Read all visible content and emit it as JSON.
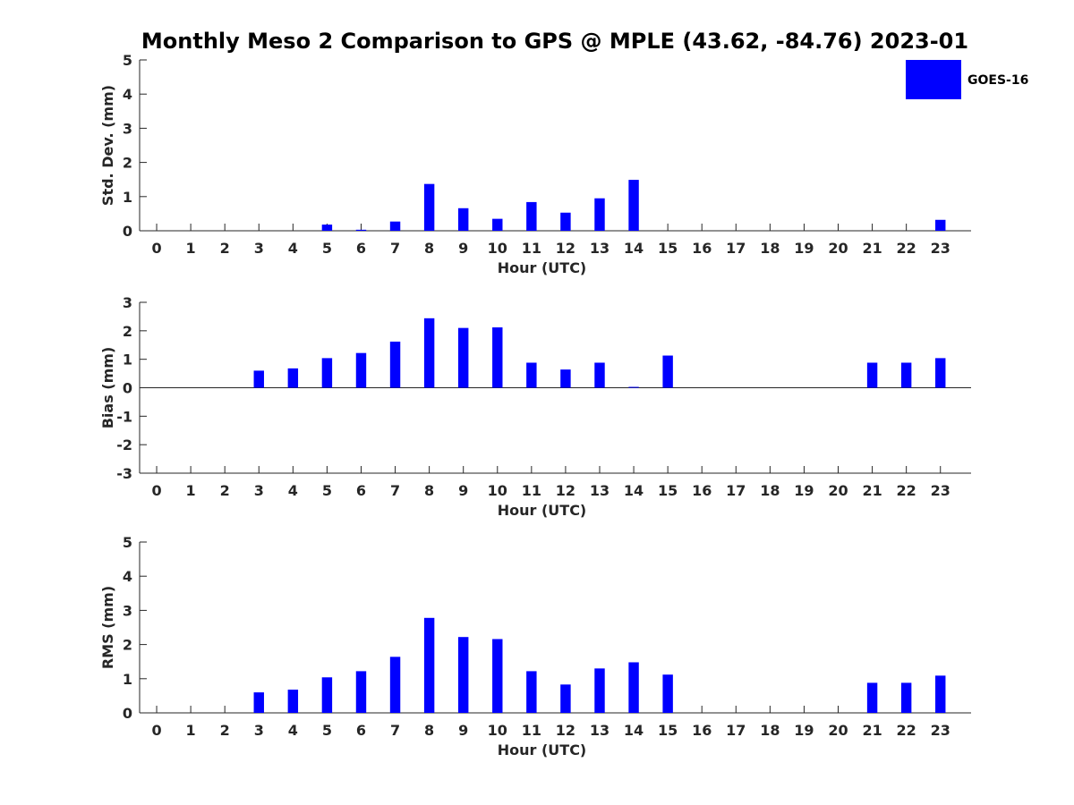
{
  "chart_data": {
    "title": "Monthly Meso 2 Comparison to GPS @ MPLE (43.62, -84.76) 2023-01",
    "colors": {
      "series": "#0000ff",
      "axis": "#262626"
    },
    "legend": {
      "label": "GOES-16",
      "placement": "top-right"
    },
    "panels": [
      {
        "type": "bar",
        "ylabel": "Std. Dev. (mm)",
        "xlabel": "Hour (UTC)",
        "ylim": [
          0,
          5
        ],
        "yticks": [
          0,
          1,
          2,
          3,
          4,
          5
        ],
        "categories": [
          0,
          1,
          2,
          3,
          4,
          5,
          6,
          7,
          8,
          9,
          10,
          11,
          12,
          13,
          14,
          15,
          16,
          17,
          18,
          19,
          20,
          21,
          22,
          23
        ],
        "values": [
          null,
          null,
          null,
          null,
          null,
          0.18,
          0.03,
          0.27,
          1.37,
          0.66,
          0.35,
          0.84,
          0.53,
          0.95,
          1.49,
          null,
          null,
          null,
          null,
          null,
          null,
          null,
          null,
          0.32
        ]
      },
      {
        "type": "bar",
        "ylabel": "Bias (mm)",
        "xlabel": "Hour (UTC)",
        "ylim": [
          -3,
          3
        ],
        "yticks": [
          -3,
          -2,
          -1,
          0,
          1,
          2,
          3
        ],
        "zero_line": true,
        "categories": [
          0,
          1,
          2,
          3,
          4,
          5,
          6,
          7,
          8,
          9,
          10,
          11,
          12,
          13,
          14,
          15,
          16,
          17,
          18,
          19,
          20,
          21,
          22,
          23
        ],
        "values": [
          null,
          null,
          null,
          0.6,
          0.68,
          1.04,
          1.22,
          1.62,
          2.44,
          2.1,
          2.12,
          0.88,
          0.64,
          0.88,
          0.03,
          1.13,
          null,
          null,
          null,
          null,
          null,
          0.88,
          0.88,
          1.04
        ]
      },
      {
        "type": "bar",
        "ylabel": "RMS (mm)",
        "xlabel": "Hour (UTC)",
        "ylim": [
          0,
          5
        ],
        "yticks": [
          0,
          1,
          2,
          3,
          4,
          5
        ],
        "categories": [
          0,
          1,
          2,
          3,
          4,
          5,
          6,
          7,
          8,
          9,
          10,
          11,
          12,
          13,
          14,
          15,
          16,
          17,
          18,
          19,
          20,
          21,
          22,
          23
        ],
        "values": [
          null,
          null,
          null,
          0.6,
          0.68,
          1.04,
          1.22,
          1.64,
          2.78,
          2.22,
          2.16,
          1.22,
          0.83,
          1.3,
          1.48,
          1.12,
          null,
          null,
          null,
          null,
          null,
          0.88,
          0.88,
          1.09
        ]
      }
    ]
  }
}
